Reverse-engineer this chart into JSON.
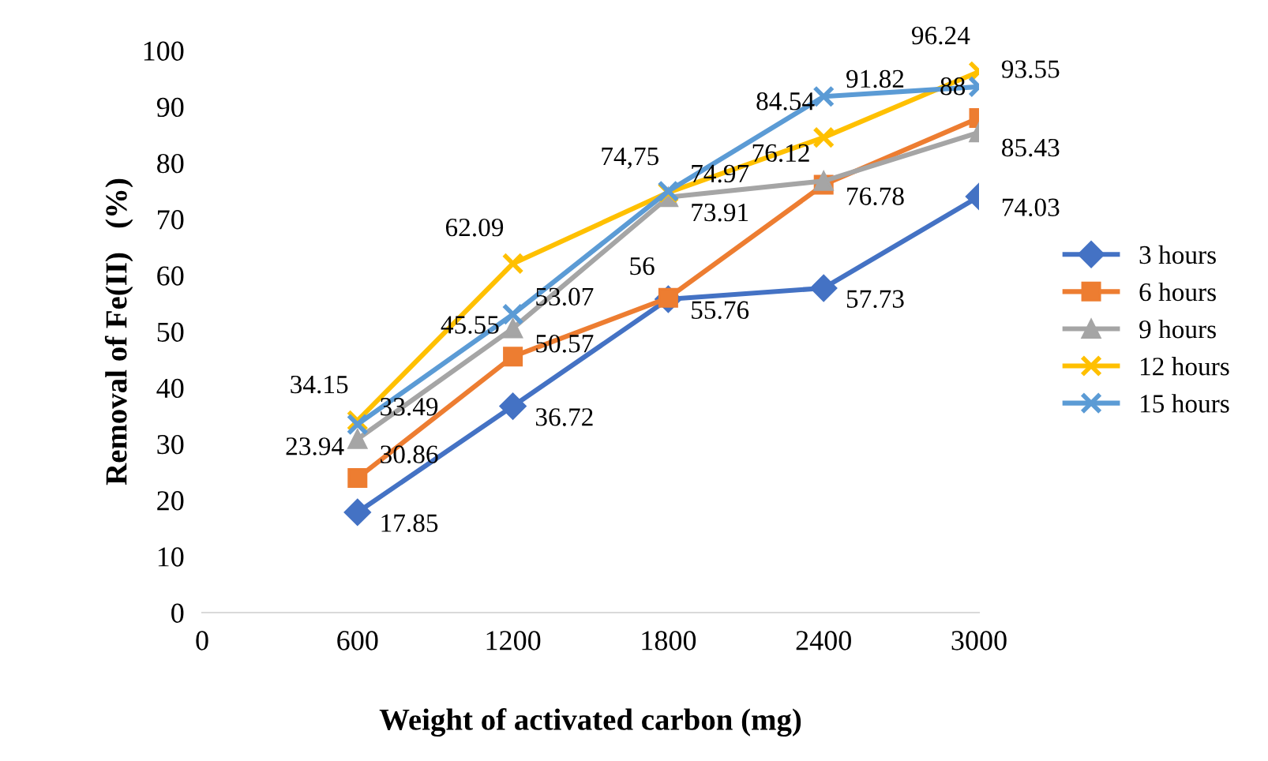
{
  "chart_data": {
    "type": "line",
    "xlabel": "Weight of activated carbon (mg)",
    "ylabel": "Removal of Fe(II)   (%)",
    "x": [
      600,
      1200,
      1800,
      2400,
      3000
    ],
    "xlim": [
      0,
      3000
    ],
    "xticks": [
      0,
      600,
      1200,
      1800,
      2400,
      3000
    ],
    "ylim": [
      0,
      100
    ],
    "yticks": [
      0,
      10,
      20,
      30,
      40,
      50,
      60,
      70,
      80,
      90,
      100
    ],
    "grid": false,
    "legend": "right",
    "line_style": "solid",
    "series": [
      {
        "name": "3 hours",
        "color": "#4472c4",
        "marker": "diamond",
        "values": [
          17.85,
          36.72,
          55.76,
          57.73,
          74.03
        ],
        "value_labels": [
          "17.85",
          "36.72",
          "55.76",
          "57.73",
          "74.03"
        ]
      },
      {
        "name": "6 hours",
        "color": "#ed7d31",
        "marker": "square",
        "values": [
          23.94,
          45.55,
          56,
          76.12,
          88
        ],
        "value_labels": [
          "23.94",
          "45.55",
          "56",
          "76.12",
          "88"
        ]
      },
      {
        "name": "9 hours",
        "color": "#a5a5a5",
        "marker": "triangle",
        "values": [
          30.86,
          50.57,
          73.91,
          76.78,
          85.43
        ],
        "value_labels": [
          "30.86",
          "50.57",
          "73.91",
          "76.78",
          "85.43"
        ]
      },
      {
        "name": "12 hours",
        "color": "#ffc000",
        "marker": "cross",
        "values": [
          34.15,
          62.09,
          74.75,
          84.54,
          96.24
        ],
        "value_labels": [
          "34.15",
          "62.09",
          "74,75",
          "84.54",
          "96.24"
        ]
      },
      {
        "name": "15 hours",
        "color": "#5b9bd5",
        "marker": "cross",
        "values": [
          33.49,
          53.07,
          74.97,
          91.82,
          93.55
        ],
        "value_labels": [
          "33.49",
          "53.07",
          "74.97",
          "91.82",
          "93.55"
        ]
      }
    ]
  }
}
